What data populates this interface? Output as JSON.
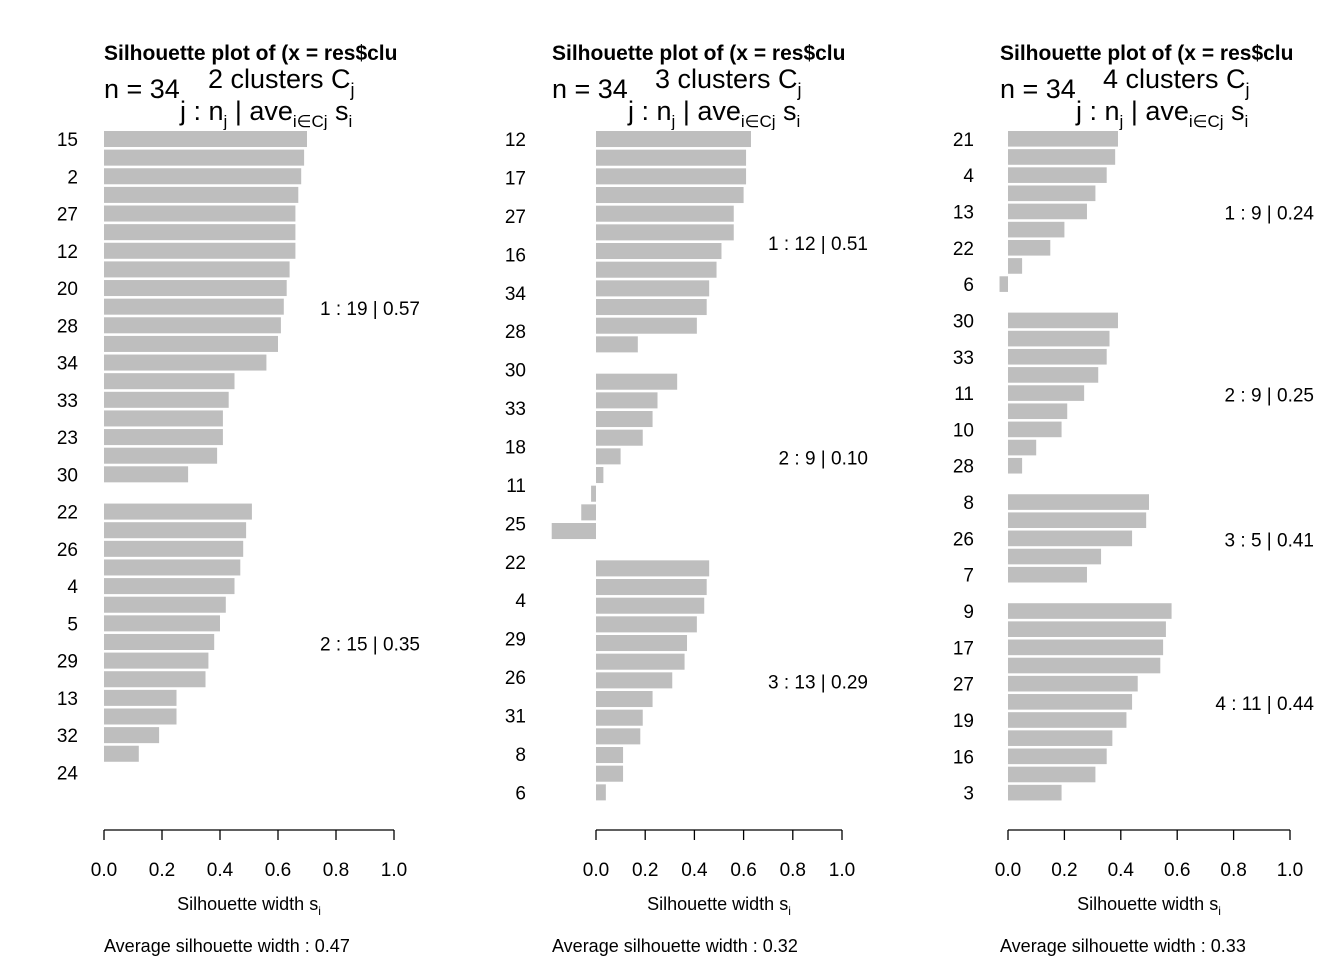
{
  "chart_data": [
    {
      "type": "bar",
      "title": "Silhouette plot of (x = res$clu",
      "n_label": "n = 34",
      "k_label": "2  clusters  C",
      "k_sub": "j",
      "header_j": "j :  n",
      "header_sep": " | ave",
      "header_sub": "i∈Cj",
      "header_s": "  s",
      "header_i": "i",
      "xlabel": "Silhouette width s",
      "xlabel_sub": "i",
      "xlim": [
        0,
        1
      ],
      "xticks": [
        "0.0",
        "0.2",
        "0.4",
        "0.6",
        "0.8",
        "1.0"
      ],
      "avg_text": "Average silhouette width :  0.47",
      "clusters": [
        {
          "label": "1 :   19  |  0.57",
          "values": [
            0.7,
            0.69,
            0.68,
            0.67,
            0.66,
            0.66,
            0.66,
            0.64,
            0.63,
            0.62,
            0.61,
            0.6,
            0.56,
            0.45,
            0.43,
            0.41,
            0.41,
            0.39,
            0.29
          ]
        },
        {
          "label": "2 :   15  |  0.35",
          "values": [
            0.51,
            0.49,
            0.48,
            0.47,
            0.45,
            0.42,
            0.4,
            0.38,
            0.36,
            0.35,
            0.25,
            0.25,
            0.19,
            0.12,
            0.0
          ]
        }
      ],
      "row_labels": [
        "15",
        "2",
        "27",
        "12",
        "20",
        "28",
        "34",
        "33",
        "23",
        "30",
        "22",
        "26",
        "4",
        "5",
        "29",
        "13",
        "32",
        "24"
      ]
    },
    {
      "type": "bar",
      "title": "Silhouette plot of (x = res$clu",
      "n_label": "n = 34",
      "k_label": "3  clusters  C",
      "k_sub": "j",
      "header_j": "j :  n",
      "header_sep": " | ave",
      "header_sub": "i∈Cj",
      "header_s": "  s",
      "header_i": "i",
      "xlabel": "Silhouette width s",
      "xlabel_sub": "i",
      "xlim": [
        -0.18,
        1
      ],
      "xticks": [
        "0.0",
        "0.2",
        "0.4",
        "0.6",
        "0.8",
        "1.0"
      ],
      "avg_text": "Average silhouette width :  0.32",
      "clusters": [
        {
          "label": "1 :   12  |  0.51",
          "values": [
            0.63,
            0.61,
            0.61,
            0.6,
            0.56,
            0.56,
            0.51,
            0.49,
            0.46,
            0.45,
            0.41,
            0.17
          ]
        },
        {
          "label": "2 :   9  |  0.10",
          "values": [
            0.33,
            0.25,
            0.23,
            0.19,
            0.1,
            0.03,
            -0.02,
            -0.06,
            -0.18
          ]
        },
        {
          "label": "3 :   13  |  0.29",
          "values": [
            0.46,
            0.45,
            0.44,
            0.41,
            0.37,
            0.36,
            0.31,
            0.23,
            0.19,
            0.18,
            0.11,
            0.11,
            0.04
          ]
        }
      ],
      "row_labels": [
        "12",
        "17",
        "27",
        "16",
        "34",
        "28",
        "30",
        "33",
        "18",
        "11",
        "25",
        "22",
        "4",
        "29",
        "26",
        "31",
        "8",
        "6"
      ]
    },
    {
      "type": "bar",
      "title": "Silhouette plot of (x = res$clu",
      "n_label": "n = 34",
      "k_label": "4  clusters  C",
      "k_sub": "j",
      "header_j": "j :  n",
      "header_sep": " | ave",
      "header_sub": "i∈Cj",
      "header_s": "  s",
      "header_i": "i",
      "xlabel": "Silhouette width s",
      "xlabel_sub": "i",
      "xlim": [
        -0.03,
        1
      ],
      "xticks": [
        "0.0",
        "0.2",
        "0.4",
        "0.6",
        "0.8",
        "1.0"
      ],
      "avg_text": "Average silhouette width :  0.33",
      "clusters": [
        {
          "label": "1 :   9  |  0.24",
          "values": [
            0.39,
            0.38,
            0.35,
            0.31,
            0.28,
            0.2,
            0.15,
            0.05,
            -0.03
          ]
        },
        {
          "label": "2 :   9  |  0.25",
          "values": [
            0.39,
            0.36,
            0.35,
            0.32,
            0.27,
            0.21,
            0.19,
            0.1,
            0.05
          ]
        },
        {
          "label": "3 :   5  |  0.41",
          "values": [
            0.5,
            0.49,
            0.44,
            0.33,
            0.28
          ]
        },
        {
          "label": "4 :   11  |  0.44",
          "values": [
            0.58,
            0.56,
            0.55,
            0.54,
            0.46,
            0.44,
            0.42,
            0.37,
            0.35,
            0.31,
            0.19
          ]
        }
      ],
      "row_labels": [
        "21",
        "4",
        "13",
        "22",
        "6",
        "30",
        "33",
        "11",
        "10",
        "28",
        "8",
        "26",
        "7",
        "9",
        "17",
        "27",
        "19",
        "16",
        "3"
      ]
    }
  ]
}
